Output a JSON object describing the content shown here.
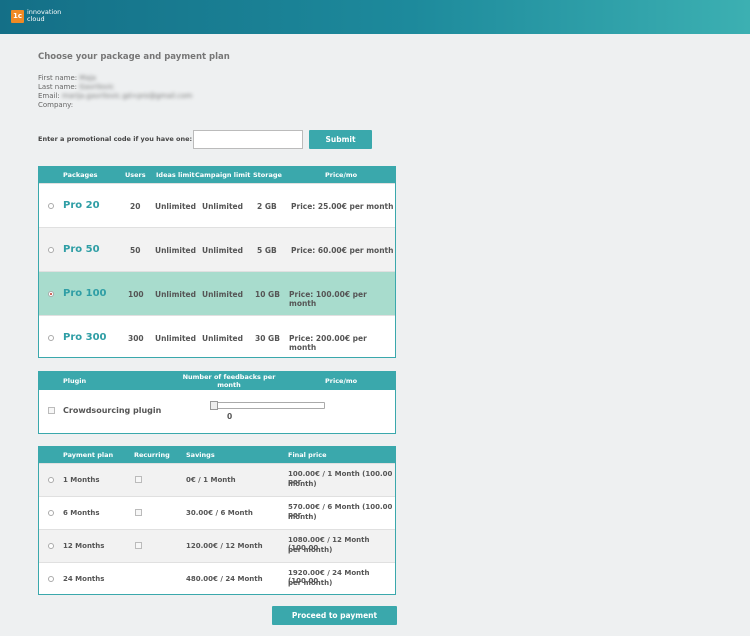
{
  "brand": {
    "mark": "1c",
    "line1": "innovation",
    "line2": "cloud"
  },
  "page_title": "Choose your package and payment plan",
  "user": {
    "first_name_label": "First name:",
    "first_name": "Maja",
    "last_name_label": "Last name:",
    "last_name": "Gavrilovic",
    "email_label": "Email:",
    "email": "marija.gavrilovic.gd+pro@gmail.com",
    "company_label": "Company:"
  },
  "promo": {
    "label": "Enter a promotional code if you have one:",
    "value": "",
    "submit": "Submit"
  },
  "packages": {
    "headers": [
      "Packages",
      "Users",
      "Ideas limit",
      "Campaign limit",
      "Storage",
      "Price/mo"
    ],
    "rows": [
      {
        "name": "Pro 20",
        "users": "20",
        "ideas": "Unlimited",
        "campaigns": "Unlimited",
        "storage": "2 GB",
        "price": "Price: 25.00€ per month",
        "selected": false
      },
      {
        "name": "Pro 50",
        "users": "50",
        "ideas": "Unlimited",
        "campaigns": "Unlimited",
        "storage": "5 GB",
        "price": "Price: 60.00€ per month",
        "selected": false
      },
      {
        "name": "Pro 100",
        "users": "100",
        "ideas": "Unlimited",
        "campaigns": "Unlimited",
        "storage": "10 GB",
        "price": "Price: 100.00€ per month",
        "selected": true
      },
      {
        "name": "Pro 300",
        "users": "300",
        "ideas": "Unlimited",
        "campaigns": "Unlimited",
        "storage": "30 GB",
        "price": "Price: 200.00€ per month",
        "selected": false
      }
    ]
  },
  "plugin": {
    "headers": [
      "Plugin",
      "Number of feedbacks per month",
      "Price/mo"
    ],
    "name": "Crowdsourcing plugin",
    "feedbacks": 0,
    "feedbacks_label": "0"
  },
  "payment": {
    "headers": [
      "Payment plan",
      "Recurring",
      "Savings",
      "Final price"
    ],
    "rows": [
      {
        "plan": "1 Months",
        "savings": "0€ / 1 Month",
        "final_l1": "100.00€ / 1 Month (100.00 per",
        "final_l2": "month)",
        "recurring_box": true
      },
      {
        "plan": "6 Months",
        "savings": "30.00€ / 6 Month",
        "final_l1": "570.00€ / 6 Month (100.00 per",
        "final_l2": "month)",
        "recurring_box": true
      },
      {
        "plan": "12 Months",
        "savings": "120.00€ / 12 Month",
        "final_l1": "1080.00€ / 12 Month (100.00",
        "final_l2": "per month)",
        "recurring_box": true
      },
      {
        "plan": "24 Months",
        "savings": "480.00€ / 24 Month",
        "final_l1": "1920.00€ / 24 Month (100.00",
        "final_l2": "per month)",
        "recurring_box": false
      }
    ]
  },
  "proceed_label": "Proceed to payment"
}
